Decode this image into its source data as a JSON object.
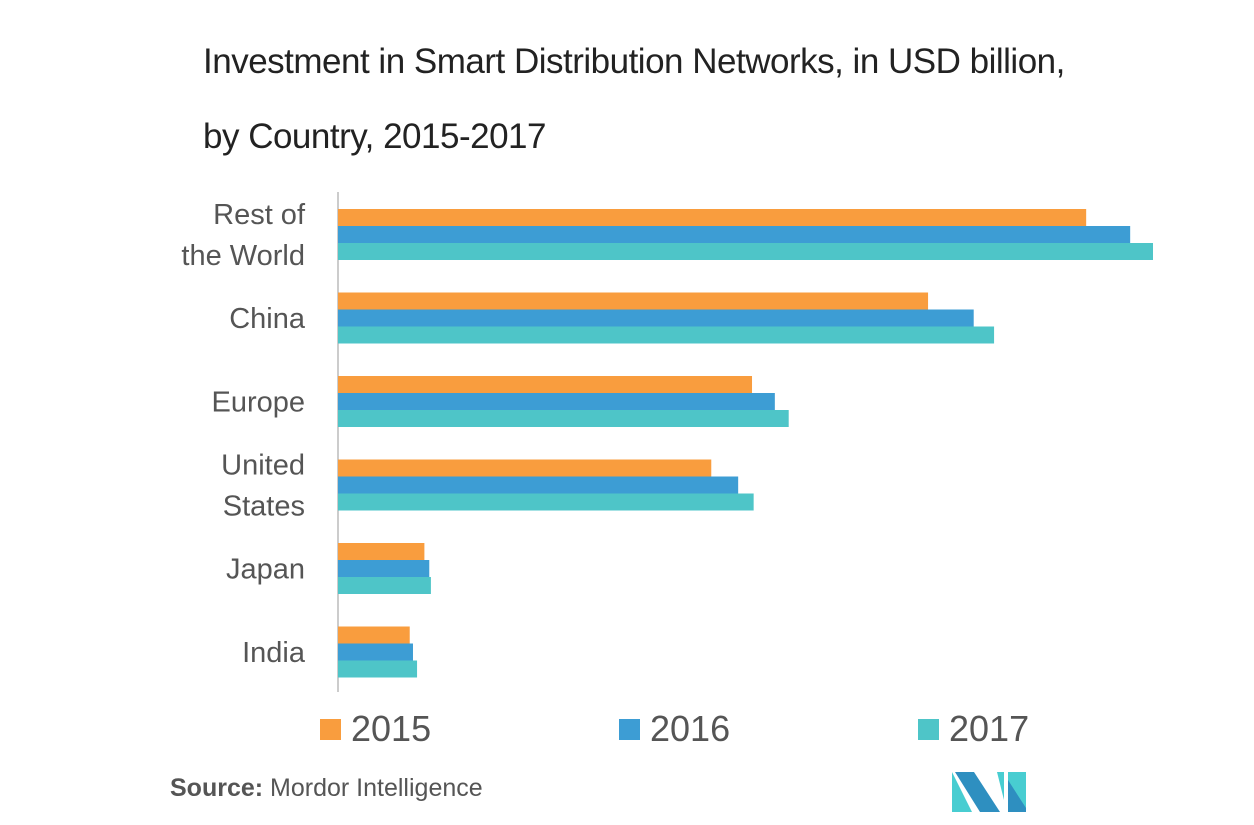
{
  "chart_data": {
    "type": "bar",
    "orientation": "horizontal",
    "title": "Investment in Smart Distribution Networks, in USD billion,",
    "subtitle": "by Country, 2015-2017",
    "xlabel": "",
    "ylabel": "",
    "categories": [
      "Rest of\nthe World",
      "China",
      "Europe",
      "United\nStates",
      "Japan",
      "India"
    ],
    "series": [
      {
        "name": "2015",
        "color": "#F99D3E",
        "values": [
          91.8,
          72.4,
          50.8,
          45.8,
          10.6,
          8.8
        ]
      },
      {
        "name": "2016",
        "color": "#3D9DD4",
        "values": [
          97.2,
          78.0,
          53.6,
          49.1,
          11.2,
          9.2
        ]
      },
      {
        "name": "2017",
        "color": "#4EC5C8",
        "values": [
          100,
          80.5,
          55.3,
          51.0,
          11.4,
          9.7
        ]
      }
    ],
    "xlim": [
      0,
      100
    ],
    "grid": false,
    "x_axis_ticks": false,
    "legend_position": "bottom"
  },
  "source": {
    "label": "Source:",
    "text": " Mordor Intelligence"
  },
  "logo": {
    "name": "mordor-intelligence-logo",
    "colors": [
      "#2E8FC0",
      "#48CDD1"
    ]
  }
}
